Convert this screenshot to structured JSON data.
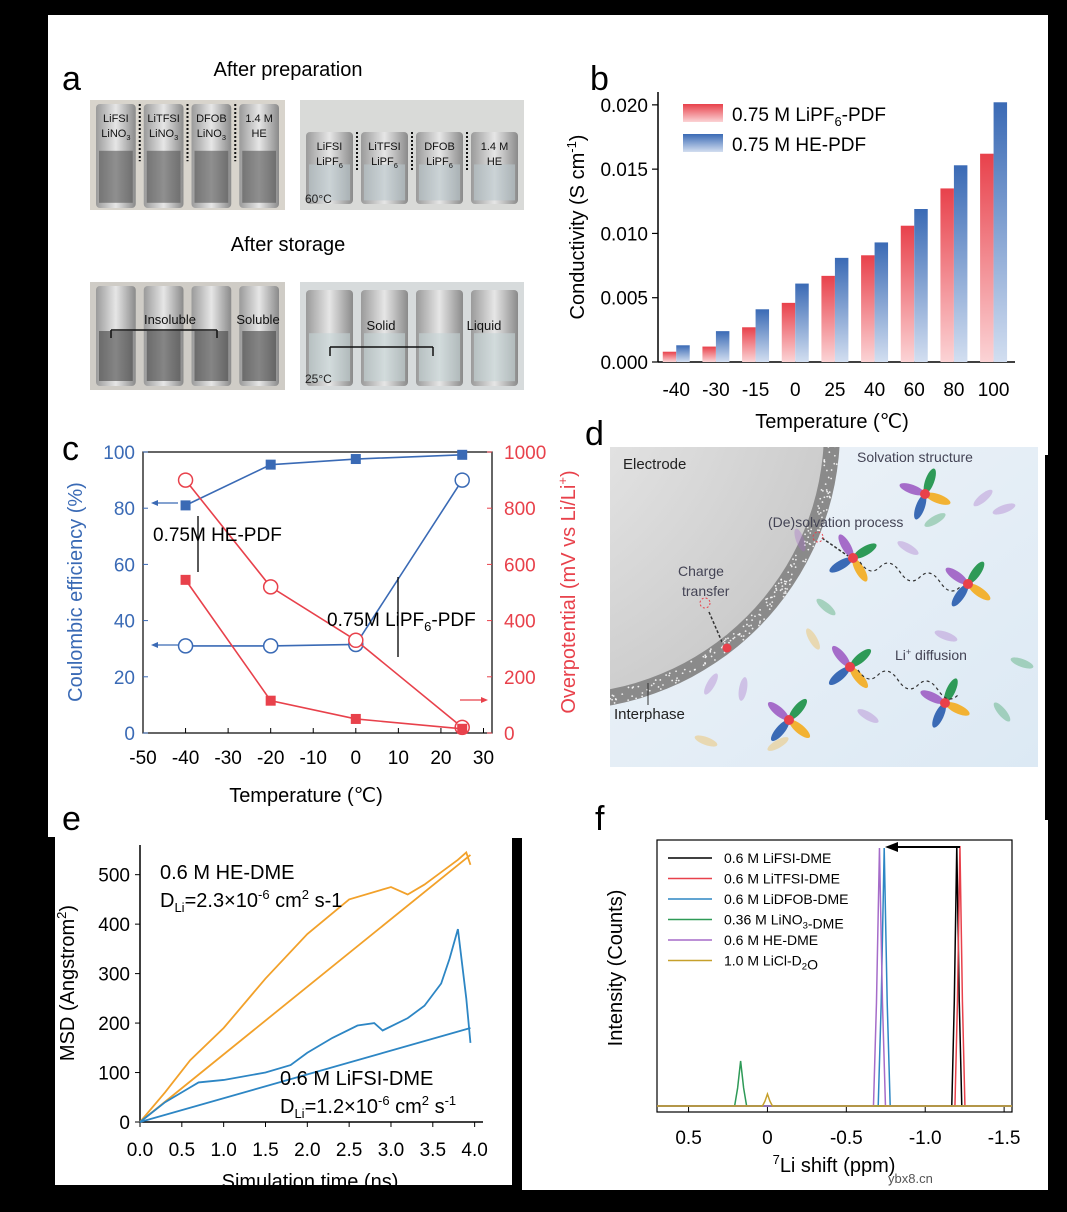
{
  "panel_letters": {
    "a": "a",
    "b": "b",
    "c": "c",
    "d": "d",
    "e": "e",
    "f": "f"
  },
  "panel_a": {
    "heading_top": "After preparation",
    "heading_bottom": "After storage",
    "vials_prep_left": [
      {
        "line1": "LiFSI",
        "line2": "LiNO3"
      },
      {
        "line1": "LiTFSI",
        "line2": "LiNO3"
      },
      {
        "line1": "DFOB",
        "line2": "LiNO3"
      },
      {
        "line1": "1.4 M",
        "line2": "HE"
      }
    ],
    "vials_prep_right": [
      {
        "line1": "LiFSI",
        "line2": "LiPF6"
      },
      {
        "line1": "LiTFSI",
        "line2": "LiPF6"
      },
      {
        "line1": "DFOB",
        "line2": "LiPF6"
      },
      {
        "line1": "1.4 M",
        "line2": "HE"
      }
    ],
    "temp_prep": "60°C",
    "storage_left": {
      "insoluble": "Insoluble",
      "soluble": "Soluble"
    },
    "storage_right": {
      "solid": "Solid",
      "liquid": "Liquid"
    },
    "temp_storage": "25°C"
  },
  "chart_data": [
    {
      "id": "b",
      "type": "bar",
      "categories": [
        "-40",
        "-30",
        "-15",
        "0",
        "25",
        "40",
        "60",
        "80",
        "100"
      ],
      "series": [
        {
          "name": "0.75 M LiPF6-PDF",
          "color": "#e8414b",
          "values": [
            0.0008,
            0.0012,
            0.0027,
            0.0046,
            0.0067,
            0.0083,
            0.0106,
            0.0135,
            0.0162
          ]
        },
        {
          "name": "0.75 M HE-PDF",
          "color": "#3a6ab5",
          "values": [
            0.0013,
            0.0024,
            0.0041,
            0.0061,
            0.0081,
            0.0093,
            0.0119,
            0.0153,
            0.0202
          ]
        }
      ],
      "legend": [
        "0.75 M LiPF6-PDF",
        "0.75 M HE-PDF"
      ],
      "xlabel": "Temperature (℃)",
      "ylabel": "Conductivity (S cm-1)",
      "ylim": [
        0,
        0.021
      ],
      "yticks": [
        "0.000",
        "0.005",
        "0.010",
        "0.015",
        "0.020"
      ]
    },
    {
      "id": "c",
      "type": "line",
      "xlabel": "Temperature (℃)",
      "ylabel_left": "Coulombic efficiency (%)",
      "ylabel_right": "Overpotential (mV vs Li/Li+)",
      "xlim": [
        -50,
        32
      ],
      "ylim_left": [
        0,
        100
      ],
      "ylim_right": [
        0,
        1000
      ],
      "xticks": [
        "-50",
        "-40",
        "-30",
        "-20",
        "-10",
        "0",
        "10",
        "20",
        "30"
      ],
      "yticks_left": [
        "0",
        "20",
        "40",
        "60",
        "80",
        "100"
      ],
      "yticks_right": [
        "0",
        "200",
        "400",
        "600",
        "800",
        "1000"
      ],
      "series": [
        {
          "name": "HE-PDF CE",
          "axis": "left",
          "marker": "filled-square",
          "color": "#3a6ab5",
          "x": [
            -40,
            -20,
            0,
            25
          ],
          "y": [
            81,
            95.5,
            97.5,
            99
          ]
        },
        {
          "name": "LiPF6-PDF CE",
          "axis": "left",
          "marker": "open-circle",
          "color": "#3a6ab5",
          "x": [
            -40,
            -20,
            0,
            25
          ],
          "y": [
            31,
            31,
            31.5,
            90
          ]
        },
        {
          "name": "LiPF6-PDF overpotential",
          "axis": "right",
          "marker": "open-circle",
          "color": "#e8414b",
          "x": [
            -40,
            -20,
            0,
            25
          ],
          "y": [
            900,
            520,
            330,
            20
          ]
        },
        {
          "name": "HE-PDF overpotential",
          "axis": "right",
          "marker": "filled-square",
          "color": "#e8414b",
          "x": [
            -40,
            -20,
            0,
            25
          ],
          "y": [
            545,
            115,
            50,
            15
          ]
        }
      ],
      "annotations": [
        "0.75M HE-PDF",
        "0.75M LiPF6-PDF"
      ]
    },
    {
      "id": "e",
      "type": "line",
      "xlabel": "Simulation time (ns)",
      "ylabel": "MSD (Angstrom2)",
      "xlim": [
        0,
        4.1
      ],
      "ylim": [
        0,
        560
      ],
      "xticks": [
        "0.0",
        "0.5",
        "1.0",
        "1.5",
        "2.0",
        "2.5",
        "3.0",
        "3.5",
        "4.0"
      ],
      "yticks": [
        "0",
        "100",
        "200",
        "300",
        "400",
        "500"
      ],
      "series": [
        {
          "name": "0.6 M HE-DME",
          "color": "#f2a12a",
          "x": [
            0,
            0.3,
            0.6,
            1.0,
            1.5,
            2.0,
            2.5,
            3.0,
            3.2,
            3.4,
            3.6,
            3.8,
            3.9,
            3.95
          ],
          "y": [
            0,
            60,
            125,
            190,
            290,
            380,
            450,
            475,
            460,
            480,
            505,
            530,
            545,
            520
          ]
        },
        {
          "name": "0.6 M HE-DME fit",
          "color": "#f2a12a",
          "x": [
            0,
            3.95
          ],
          "y": [
            0,
            540
          ]
        },
        {
          "name": "0.6 M LiFSI-DME",
          "color": "#2d86c4",
          "x": [
            0,
            0.3,
            0.6,
            0.7,
            1.0,
            1.5,
            1.8,
            2.0,
            2.3,
            2.6,
            2.8,
            2.9,
            3.2,
            3.4,
            3.6,
            3.7,
            3.8,
            3.9,
            3.95
          ],
          "y": [
            0,
            40,
            70,
            80,
            85,
            100,
            115,
            140,
            170,
            195,
            200,
            185,
            210,
            235,
            280,
            330,
            390,
            250,
            160
          ]
        },
        {
          "name": "0.6 M LiFSI-DME fit",
          "color": "#2d86c4",
          "x": [
            0,
            3.95
          ],
          "y": [
            0,
            190
          ]
        }
      ],
      "annotation_he": {
        "title": "0.6 M HE-DME",
        "d_value": "DLi=2.3×10-6 cm2 s-1"
      },
      "annotation_lifsi": {
        "title": "0.6 M LiFSI-DME",
        "d_value": "DLi=1.2×10-6 cm2 s-1"
      }
    },
    {
      "id": "f",
      "type": "line",
      "xlabel": "7Li shift (ppm)",
      "ylabel": "Intensity (Counts)",
      "xlim": [
        0.7,
        -1.55
      ],
      "xticks": [
        "0.5",
        "0",
        "-0.5",
        "-1.0",
        "-1.5"
      ],
      "series": [
        {
          "name": "0.6 M LiFSI-DME",
          "color": "#000000",
          "peak_ppm": -1.2
        },
        {
          "name": "0.6 M LiTFSI-DME",
          "color": "#e8414b",
          "peak_ppm": -1.22
        },
        {
          "name": "0.6 M LiDFOB-DME",
          "color": "#2d86c4",
          "peak_ppm": -0.74
        },
        {
          "name": "0.36 M LiNO3-DME",
          "color": "#2e9a57",
          "peak_ppm": 0.17
        },
        {
          "name": "0.6 M HE-DME",
          "color": "#a56cc9",
          "peak_ppm": -0.71
        },
        {
          "name": "1.0 M LiCl-D2O",
          "color": "#c6a02b",
          "peak_ppm": 0.0
        }
      ]
    }
  ],
  "panel_d": {
    "electrode": "Electrode",
    "solvation": "Solvation structure",
    "desolvation": "(De)solvation process",
    "charge_transfer_1": "Charge",
    "charge_transfer_2": "transfer",
    "diffusion": "Li+ diffusion",
    "interphase": "Interphase"
  },
  "watermark": "ybx8.cn"
}
